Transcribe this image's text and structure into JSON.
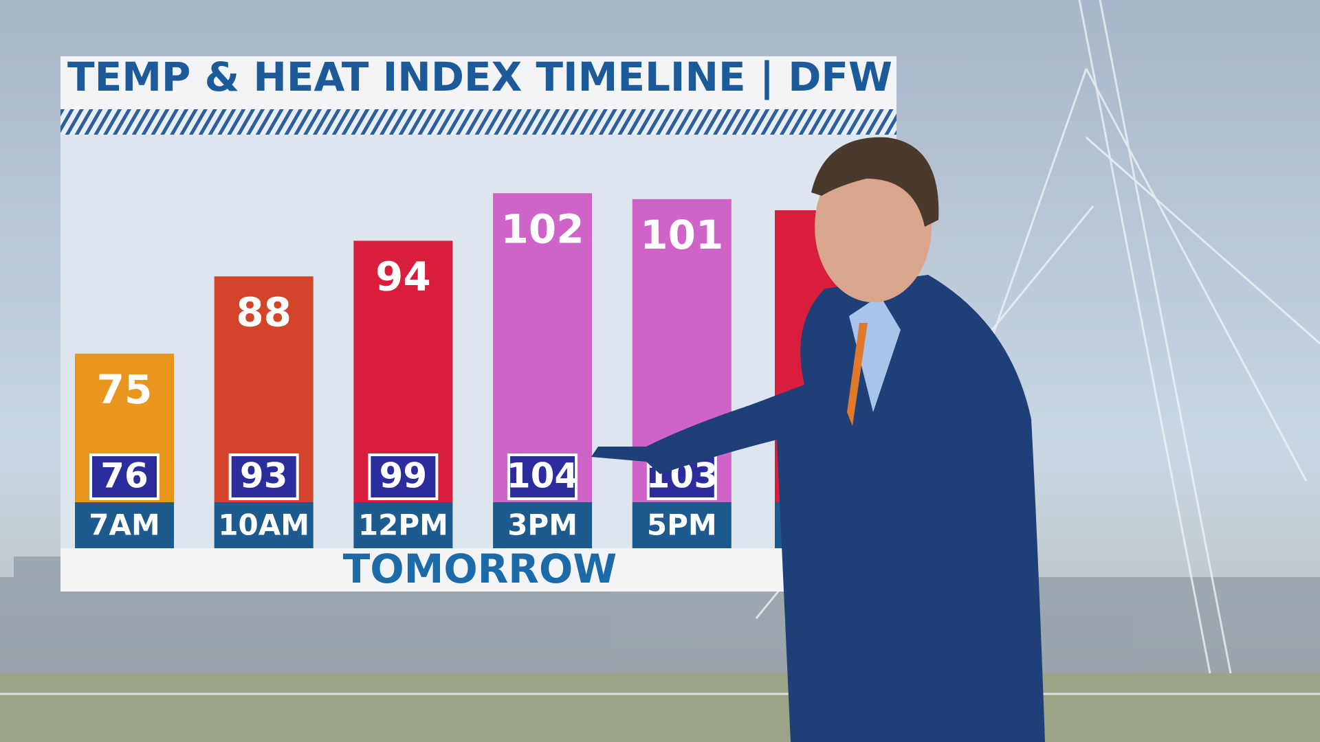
{
  "chart_data": {
    "type": "bar",
    "title": "TEMP & HEAT INDEX TIMELINE | DFW",
    "categories": [
      "7AM",
      "10AM",
      "12PM",
      "3PM",
      "5PM"
    ],
    "values": [
      75,
      88,
      94,
      102,
      101
    ],
    "colors": [
      "#e8961e",
      "#d4442a",
      "#d81e3c",
      "#d063c8",
      "#d063c8"
    ],
    "heat_index": [
      76,
      93,
      99,
      104,
      103
    ],
    "xlabel": "TOMORROW",
    "ylim": [
      50,
      110
    ]
  }
}
